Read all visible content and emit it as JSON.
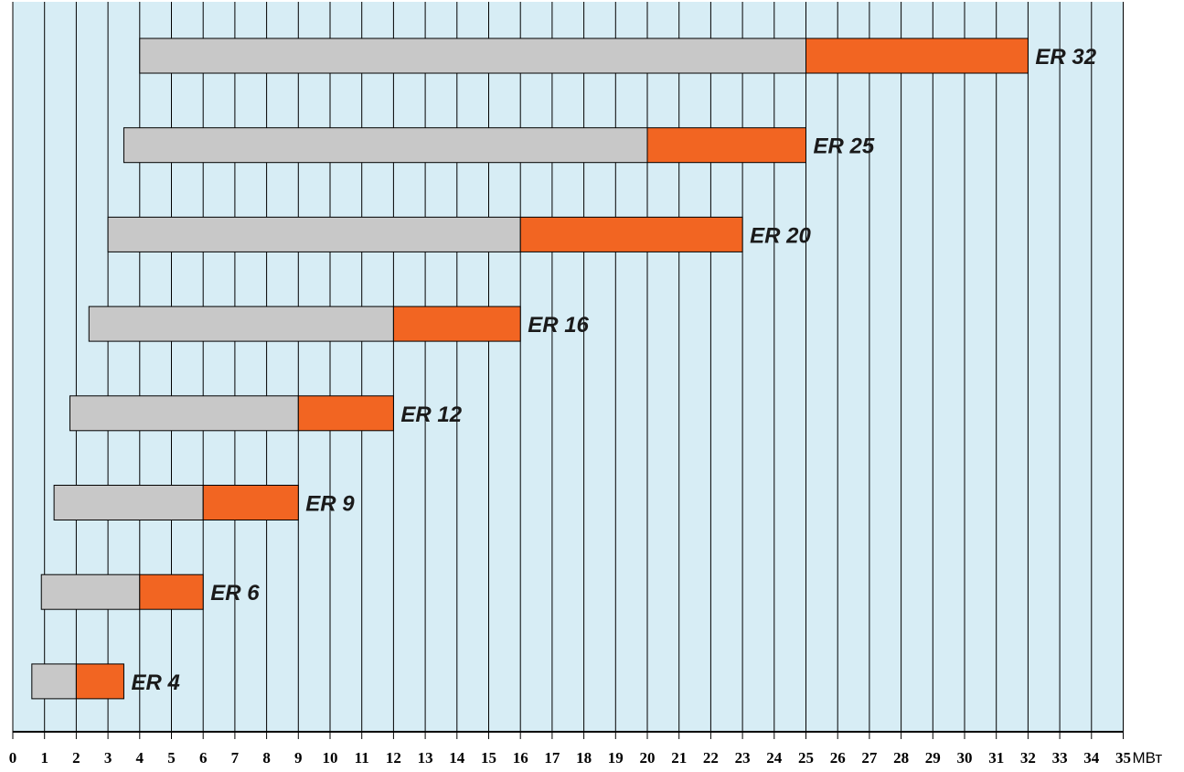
{
  "chart_data": {
    "type": "bar",
    "orientation": "horizontal-floating",
    "x_unit": "МВт",
    "xlim": [
      0,
      35
    ],
    "x_ticks": [
      0,
      1,
      2,
      3,
      4,
      5,
      6,
      7,
      8,
      9,
      10,
      11,
      12,
      13,
      14,
      15,
      16,
      17,
      18,
      19,
      20,
      21,
      22,
      23,
      24,
      25,
      26,
      27,
      28,
      29,
      30,
      31,
      32,
      33,
      34,
      35
    ],
    "grid": true,
    "colors": {
      "plot_bg": "#d7edf5",
      "grid": "#000000",
      "base_segment": "#c8c8c8",
      "upper_segment": "#f26522"
    },
    "bars": [
      {
        "label": "ER 32",
        "start": 4,
        "mid": 25,
        "end": 32
      },
      {
        "label": "ER 25",
        "start": 3.5,
        "mid": 20,
        "end": 25
      },
      {
        "label": "ER 20",
        "start": 3,
        "mid": 16,
        "end": 23
      },
      {
        "label": "ER 16",
        "start": 2.4,
        "mid": 12,
        "end": 16
      },
      {
        "label": "ER 12",
        "start": 1.8,
        "mid": 9,
        "end": 12
      },
      {
        "label": "ER 9",
        "start": 1.3,
        "mid": 6,
        "end": 9
      },
      {
        "label": "ER 6",
        "start": 0.9,
        "mid": 4,
        "end": 6
      },
      {
        "label": "ER 4",
        "start": 0.6,
        "mid": 2,
        "end": 3.5
      }
    ]
  }
}
